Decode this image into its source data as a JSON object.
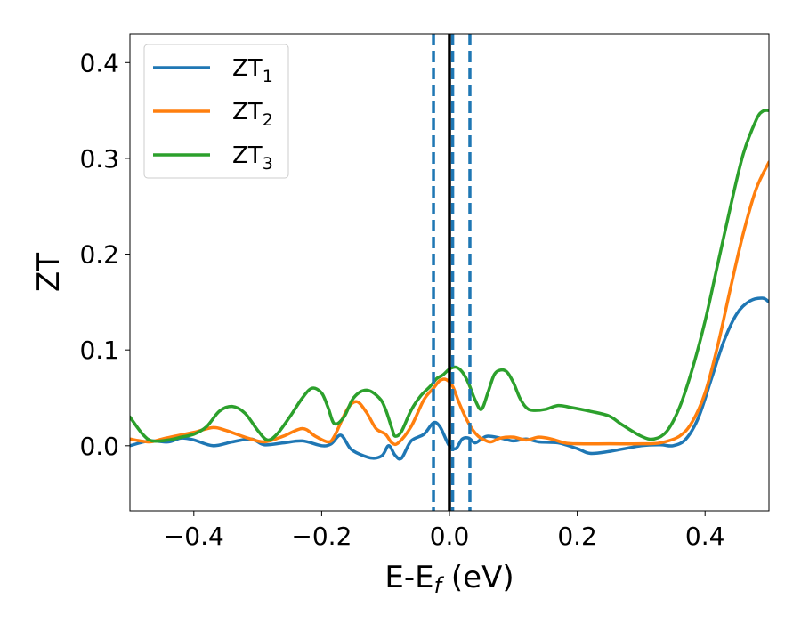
{
  "chart_data": {
    "type": "line",
    "xlabel_main": "E-E",
    "xlabel_sub": "f",
    "xlabel_unit": " (eV)",
    "ylabel": "ZT",
    "xlim": [
      -0.5,
      0.5
    ],
    "ylim": [
      -0.068,
      0.43
    ],
    "grid": false,
    "legend_position": "top-left",
    "xticks": [
      -0.4,
      -0.2,
      0.0,
      0.2,
      0.4
    ],
    "xtick_labels": [
      "−0.4",
      "−0.2",
      "0.0",
      "0.2",
      "0.4"
    ],
    "yticks": [
      0.0,
      0.1,
      0.2,
      0.3,
      0.4
    ],
    "ytick_labels": [
      "0.0",
      "0.1",
      "0.2",
      "0.3",
      "0.4"
    ],
    "vlines": [
      {
        "x": 0.0,
        "color": "#000000",
        "style": "solid"
      },
      {
        "x": -0.025,
        "color": "#1f77b4",
        "style": "dashed"
      },
      {
        "x": 0.005,
        "color": "#1f77b4",
        "style": "dashed"
      },
      {
        "x": 0.032,
        "color": "#1f77b4",
        "style": "dashed"
      }
    ],
    "series": [
      {
        "name_main": "ZT",
        "name_sub": "1",
        "color": "#1f77b4",
        "points": [
          [
            -0.5,
            0.0
          ],
          [
            -0.47,
            0.005
          ],
          [
            -0.44,
            0.004
          ],
          [
            -0.42,
            0.008
          ],
          [
            -0.4,
            0.006
          ],
          [
            -0.37,
            0.0
          ],
          [
            -0.34,
            0.004
          ],
          [
            -0.31,
            0.007
          ],
          [
            -0.29,
            0.001
          ],
          [
            -0.26,
            0.003
          ],
          [
            -0.23,
            0.005
          ],
          [
            -0.2,
            0.0
          ],
          [
            -0.185,
            0.002
          ],
          [
            -0.17,
            0.011
          ],
          [
            -0.155,
            -0.003
          ],
          [
            -0.14,
            -0.009
          ],
          [
            -0.12,
            -0.013
          ],
          [
            -0.105,
            -0.01
          ],
          [
            -0.095,
            0.0
          ],
          [
            -0.085,
            -0.01
          ],
          [
            -0.075,
            -0.013
          ],
          [
            -0.06,
            0.005
          ],
          [
            -0.04,
            0.012
          ],
          [
            -0.025,
            0.024
          ],
          [
            -0.015,
            0.02
          ],
          [
            -0.005,
            0.006
          ],
          [
            0.0,
            0.0
          ],
          [
            0.01,
            -0.003
          ],
          [
            0.02,
            0.007
          ],
          [
            0.03,
            0.008
          ],
          [
            0.04,
            0.003
          ],
          [
            0.05,
            0.007
          ],
          [
            0.06,
            0.01
          ],
          [
            0.08,
            0.008
          ],
          [
            0.1,
            0.005
          ],
          [
            0.12,
            0.007
          ],
          [
            0.14,
            0.004
          ],
          [
            0.17,
            0.003
          ],
          [
            0.2,
            -0.003
          ],
          [
            0.22,
            -0.008
          ],
          [
            0.25,
            -0.006
          ],
          [
            0.3,
            0.0
          ],
          [
            0.33,
            0.001
          ],
          [
            0.35,
            0.0
          ],
          [
            0.37,
            0.007
          ],
          [
            0.39,
            0.03
          ],
          [
            0.41,
            0.07
          ],
          [
            0.43,
            0.11
          ],
          [
            0.45,
            0.138
          ],
          [
            0.47,
            0.151
          ],
          [
            0.49,
            0.154
          ],
          [
            0.5,
            0.15
          ]
        ]
      },
      {
        "name_main": "ZT",
        "name_sub": "2",
        "color": "#ff7f0e",
        "points": [
          [
            -0.5,
            0.007
          ],
          [
            -0.47,
            0.004
          ],
          [
            -0.45,
            0.007
          ],
          [
            -0.43,
            0.01
          ],
          [
            -0.4,
            0.014
          ],
          [
            -0.37,
            0.019
          ],
          [
            -0.35,
            0.016
          ],
          [
            -0.32,
            0.009
          ],
          [
            -0.29,
            0.004
          ],
          [
            -0.26,
            0.01
          ],
          [
            -0.23,
            0.018
          ],
          [
            -0.21,
            0.01
          ],
          [
            -0.19,
            0.004
          ],
          [
            -0.18,
            0.01
          ],
          [
            -0.16,
            0.038
          ],
          [
            -0.145,
            0.046
          ],
          [
            -0.13,
            0.035
          ],
          [
            -0.115,
            0.018
          ],
          [
            -0.1,
            0.012
          ],
          [
            -0.09,
            0.003
          ],
          [
            -0.08,
            0.003
          ],
          [
            -0.06,
            0.02
          ],
          [
            -0.04,
            0.048
          ],
          [
            -0.025,
            0.06
          ],
          [
            -0.015,
            0.068
          ],
          [
            -0.005,
            0.069
          ],
          [
            0.005,
            0.062
          ],
          [
            0.015,
            0.045
          ],
          [
            0.025,
            0.03
          ],
          [
            0.035,
            0.018
          ],
          [
            0.045,
            0.01
          ],
          [
            0.055,
            0.006
          ],
          [
            0.065,
            0.004
          ],
          [
            0.08,
            0.008
          ],
          [
            0.1,
            0.009
          ],
          [
            0.12,
            0.006
          ],
          [
            0.14,
            0.009
          ],
          [
            0.16,
            0.007
          ],
          [
            0.18,
            0.003
          ],
          [
            0.2,
            0.002
          ],
          [
            0.25,
            0.002
          ],
          [
            0.3,
            0.002
          ],
          [
            0.33,
            0.003
          ],
          [
            0.36,
            0.01
          ],
          [
            0.38,
            0.025
          ],
          [
            0.4,
            0.055
          ],
          [
            0.42,
            0.105
          ],
          [
            0.44,
            0.165
          ],
          [
            0.46,
            0.222
          ],
          [
            0.48,
            0.268
          ],
          [
            0.5,
            0.296
          ]
        ]
      },
      {
        "name_main": "ZT",
        "name_sub": "3",
        "color": "#2ca02c",
        "points": [
          [
            -0.5,
            0.03
          ],
          [
            -0.48,
            0.012
          ],
          [
            -0.465,
            0.005
          ],
          [
            -0.44,
            0.006
          ],
          [
            -0.42,
            0.009
          ],
          [
            -0.4,
            0.012
          ],
          [
            -0.38,
            0.02
          ],
          [
            -0.36,
            0.036
          ],
          [
            -0.34,
            0.041
          ],
          [
            -0.32,
            0.034
          ],
          [
            -0.3,
            0.016
          ],
          [
            -0.285,
            0.006
          ],
          [
            -0.27,
            0.012
          ],
          [
            -0.25,
            0.03
          ],
          [
            -0.23,
            0.05
          ],
          [
            -0.215,
            0.06
          ],
          [
            -0.2,
            0.055
          ],
          [
            -0.19,
            0.04
          ],
          [
            -0.18,
            0.023
          ],
          [
            -0.165,
            0.03
          ],
          [
            -0.15,
            0.05
          ],
          [
            -0.13,
            0.058
          ],
          [
            -0.11,
            0.05
          ],
          [
            -0.1,
            0.038
          ],
          [
            -0.09,
            0.018
          ],
          [
            -0.085,
            0.01
          ],
          [
            -0.075,
            0.015
          ],
          [
            -0.06,
            0.037
          ],
          [
            -0.045,
            0.052
          ],
          [
            -0.03,
            0.062
          ],
          [
            -0.02,
            0.07
          ],
          [
            -0.01,
            0.074
          ],
          [
            0.0,
            0.08
          ],
          [
            0.01,
            0.082
          ],
          [
            0.02,
            0.077
          ],
          [
            0.03,
            0.065
          ],
          [
            0.04,
            0.048
          ],
          [
            0.05,
            0.038
          ],
          [
            0.06,
            0.055
          ],
          [
            0.07,
            0.074
          ],
          [
            0.08,
            0.079
          ],
          [
            0.09,
            0.077
          ],
          [
            0.1,
            0.066
          ],
          [
            0.11,
            0.05
          ],
          [
            0.12,
            0.04
          ],
          [
            0.13,
            0.037
          ],
          [
            0.15,
            0.038
          ],
          [
            0.17,
            0.042
          ],
          [
            0.19,
            0.04
          ],
          [
            0.22,
            0.036
          ],
          [
            0.25,
            0.031
          ],
          [
            0.27,
            0.022
          ],
          [
            0.3,
            0.01
          ],
          [
            0.32,
            0.007
          ],
          [
            0.34,
            0.015
          ],
          [
            0.36,
            0.04
          ],
          [
            0.38,
            0.08
          ],
          [
            0.4,
            0.13
          ],
          [
            0.42,
            0.19
          ],
          [
            0.44,
            0.25
          ],
          [
            0.46,
            0.305
          ],
          [
            0.48,
            0.34
          ],
          [
            0.49,
            0.349
          ],
          [
            0.5,
            0.35
          ]
        ]
      }
    ]
  }
}
